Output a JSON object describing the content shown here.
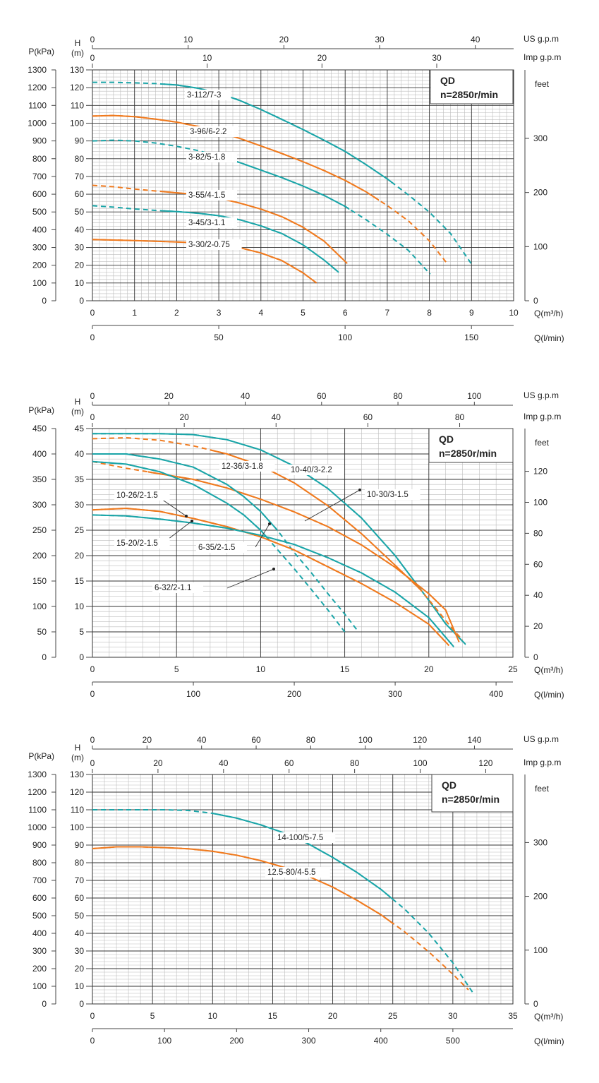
{
  "colors": {
    "teal": "#1aa5a8",
    "orange": "#f07a1e",
    "grid_major": "#333333",
    "grid_minor": "#bdbdbd",
    "axis": "#444444"
  },
  "chart_data": [
    {
      "type": "line",
      "title": "QD",
      "subtitle": "n=2850r/min",
      "ylabel_p": "P(kPa)",
      "ylabel_h": "H",
      "ylabel_h_unit": "(m)",
      "ylabel_feet": "feet",
      "xlabel_q": "Q(m³/h)",
      "xlabel_l": "Q(l/min)",
      "xlabel_us": "US g.p.m",
      "xlabel_imp": "Imp g.p.m",
      "xlim": [
        0,
        10
      ],
      "ylim": [
        0,
        130
      ],
      "x_ticks": [
        "0",
        "1",
        "2",
        "3",
        "4",
        "5",
        "6",
        "7",
        "8",
        "9",
        "10"
      ],
      "h_ticks": [
        "0",
        "10",
        "20",
        "30",
        "40",
        "50",
        "60",
        "70",
        "80",
        "90",
        "100",
        "110",
        "120",
        "130"
      ],
      "p_ticks": [
        "0",
        "100",
        "200",
        "300",
        "400",
        "500",
        "600",
        "700",
        "800",
        "900",
        "1000",
        "1100",
        "1200",
        "1300"
      ],
      "feet_ticks": [
        "0",
        "100",
        "200",
        "300"
      ],
      "l_ticks": [
        "0",
        "50",
        "100",
        "150"
      ],
      "us_ticks": [
        "0",
        "10",
        "20",
        "30",
        "40"
      ],
      "imp_ticks": [
        "0",
        "10",
        "20",
        "30"
      ],
      "series": [
        {
          "name": "3-112/7-3",
          "color": "teal",
          "x": [
            0,
            0.5,
            1,
            1.5,
            2,
            2.5,
            3,
            3.5,
            4,
            4.5,
            5,
            5.5,
            6,
            6.5,
            7,
            7.5,
            8,
            8.5,
            9.02
          ],
          "y": [
            123,
            123,
            122.7,
            122.3,
            121.5,
            119.7,
            116.9,
            112.8,
            107.7,
            102.1,
            96.4,
            90.4,
            84.1,
            76.6,
            68.6,
            59.6,
            49.9,
            37.9,
            20
          ],
          "solid_from": 1.7,
          "solid_to": 7.1
        },
        {
          "name": "3-96/6-2.2",
          "color": "orange",
          "x": [
            0,
            0.5,
            1,
            1.5,
            2,
            2.5,
            3,
            3.5,
            4,
            4.5,
            5,
            5.5,
            6,
            6.5,
            7,
            7.5,
            8,
            8.42
          ],
          "y": [
            104,
            104.3,
            103.7,
            102.3,
            100.6,
            98.2,
            95.1,
            91.4,
            87.2,
            82.9,
            78.3,
            73.3,
            67.8,
            61.3,
            53.6,
            45,
            33.7,
            21
          ],
          "solid_from": 0,
          "solid_to": 6.8
        },
        {
          "name": "3-82/5-1.8",
          "color": "teal",
          "x": [
            0,
            0.5,
            1,
            1.5,
            2,
            2.5,
            3,
            3.5,
            4,
            4.5,
            5,
            5.5,
            6,
            6.5,
            7,
            7.5,
            8.02
          ],
          "y": [
            90,
            90.4,
            90,
            88.8,
            87,
            84.6,
            81.4,
            77.8,
            73.6,
            69.3,
            64.6,
            59.3,
            53.1,
            45.6,
            37.4,
            28.4,
            15
          ],
          "solid_from": 3.4,
          "solid_to": 6.1
        },
        {
          "name": "3-55/4-1.5",
          "color": "orange",
          "x": [
            0,
            0.5,
            1,
            1.5,
            2,
            2.5,
            3,
            3.5,
            4,
            4.5,
            5,
            5.5,
            6.05
          ],
          "y": [
            65,
            64.2,
            62.9,
            61.8,
            60.8,
            59.8,
            57.8,
            55,
            51.6,
            47.3,
            41.4,
            33.6,
            21
          ],
          "solid_from": 1.7,
          "solid_to": 6.05
        },
        {
          "name": "3-45/3-1.1",
          "color": "teal",
          "x": [
            0,
            0.5,
            1,
            1.5,
            2,
            2.5,
            3,
            3.5,
            4,
            4.5,
            5,
            5.5,
            5.85
          ],
          "y": [
            53.5,
            52.7,
            51.7,
            50.9,
            50.2,
            49.3,
            47.9,
            45.6,
            42.2,
            37.8,
            31.5,
            22.9,
            16
          ],
          "solid_from": 1.7,
          "solid_to": 5.85
        },
        {
          "name": "3-30/2-0.75",
          "color": "orange",
          "x": [
            0,
            0.5,
            1,
            1.5,
            2,
            2.5,
            3,
            3.5,
            4,
            4.5,
            5,
            5.32
          ],
          "y": [
            34.5,
            34.2,
            33.9,
            33.5,
            33.1,
            32.6,
            31.6,
            29.9,
            26.9,
            22.6,
            15.7,
            10
          ],
          "solid_from": 0,
          "solid_to": 5.32
        }
      ]
    },
    {
      "type": "line",
      "title": "QD",
      "subtitle": "n=2850r/min",
      "ylabel_p": "P(kPa)",
      "ylabel_h": "H",
      "ylabel_h_unit": "(m)",
      "ylabel_feet": "feet",
      "xlabel_q": "Q(m³/h)",
      "xlabel_l": "Q(l/min)",
      "xlabel_us": "US g.p.m",
      "xlabel_imp": "Imp g.p.m",
      "xlim": [
        0,
        25
      ],
      "ylim": [
        0,
        45
      ],
      "x_ticks": [
        "0",
        "5",
        "10",
        "15",
        "20",
        "25"
      ],
      "h_ticks": [
        "0",
        "5",
        "10",
        "15",
        "20",
        "25",
        "30",
        "35",
        "40",
        "45"
      ],
      "p_ticks": [
        "0",
        "50",
        "100",
        "150",
        "200",
        "250",
        "300",
        "350",
        "400",
        "450"
      ],
      "feet_ticks": [
        "0",
        "20",
        "40",
        "60",
        "80",
        "100",
        "120"
      ],
      "l_ticks": [
        "0",
        "100",
        "200",
        "300",
        "400"
      ],
      "us_ticks": [
        "0",
        "20",
        "40",
        "60",
        "80",
        "100"
      ],
      "imp_ticks": [
        "0",
        "20",
        "40",
        "60",
        "80"
      ],
      "series": [
        {
          "name": "10-40/3-2.2",
          "color": "teal",
          "x": [
            0,
            2,
            4,
            6,
            8,
            10,
            12,
            14,
            16,
            18,
            20,
            21,
            22.2
          ],
          "y": [
            44,
            44,
            44,
            43.8,
            42.8,
            40.8,
            37.6,
            33.2,
            27.4,
            20,
            11.2,
            6.6,
            2.5
          ],
          "solid_from": 0,
          "solid_to": 22.2
        },
        {
          "name": "12-36/3-1.8",
          "color": "orange",
          "x": [
            0,
            2,
            4,
            6,
            8,
            10,
            12,
            14,
            16,
            18,
            19.5,
            20.5,
            21.3,
            22
          ],
          "y": [
            43,
            43.2,
            42.7,
            41.6,
            40,
            37.7,
            34.3,
            29.8,
            24.3,
            18.1,
            13.3,
            9.3,
            6,
            3.4
          ],
          "solid_from": 7,
          "solid_to": 19.5
        },
        {
          "name": "10-30/3-1.5",
          "color": "orange",
          "x": [
            0,
            2,
            4,
            6,
            8,
            10,
            12,
            14,
            16,
            18,
            20,
            21,
            21.8
          ],
          "y": [
            38.5,
            37.2,
            36.1,
            35,
            33.3,
            31.1,
            28.6,
            25.7,
            22.1,
            17.7,
            12.5,
            9.3,
            3
          ],
          "solid_from": 3.3,
          "solid_to": 21.8
        },
        {
          "name": "6-35/2-1.5",
          "color": "teal",
          "x": [
            0,
            2,
            4,
            6,
            8,
            9,
            10,
            11,
            12,
            13,
            14,
            15,
            15.7
          ],
          "y": [
            40,
            40,
            39,
            37.4,
            34,
            31.6,
            28.7,
            25,
            20.6,
            16.7,
            12.5,
            8.5,
            5.5
          ],
          "solid_from": 0,
          "solid_to": 11
        },
        {
          "name": "6-32/2-1.1",
          "color": "teal",
          "x": [
            0,
            2,
            4,
            6,
            8,
            9,
            10,
            11,
            12,
            13,
            14,
            15
          ],
          "y": [
            38.5,
            38,
            36.5,
            34,
            30.3,
            28,
            25,
            21.2,
            17.4,
            13.4,
            9.3,
            5
          ],
          "solid_from": 0,
          "solid_to": 10.5
        },
        {
          "name": "10-26/2-1.5",
          "color": "orange",
          "x": [
            0,
            2,
            4,
            6,
            8,
            10,
            12,
            14,
            16,
            18,
            20,
            21.2
          ],
          "y": [
            29,
            29.3,
            28.7,
            27.3,
            25.7,
            23.7,
            21.1,
            17.8,
            14.5,
            10.8,
            6.5,
            2.3
          ],
          "solid_from": 0,
          "solid_to": 21.2
        },
        {
          "name": "15-20/2-1.5",
          "color": "teal",
          "x": [
            0,
            2,
            4,
            6,
            8,
            10,
            12,
            14,
            16,
            18,
            20,
            21.5
          ],
          "y": [
            28,
            27.8,
            27.2,
            26.4,
            25.4,
            24,
            22.2,
            19.6,
            16.6,
            12.8,
            7.8,
            2
          ],
          "solid_from": 0,
          "solid_to": 21.5
        }
      ]
    },
    {
      "type": "line",
      "title": "QD",
      "subtitle": "n=2850r/min",
      "ylabel_p": "P(kPa)",
      "ylabel_h": "H",
      "ylabel_h_unit": "(m)",
      "ylabel_feet": "feet",
      "xlabel_q": "Q(m³/h)",
      "xlabel_l": "Q(l/min)",
      "xlabel_us": "US g.p.m",
      "xlabel_imp": "Imp g.p.m",
      "xlim": [
        0,
        35
      ],
      "ylim": [
        0,
        130
      ],
      "x_ticks": [
        "0",
        "5",
        "10",
        "15",
        "20",
        "25",
        "30",
        "35"
      ],
      "h_ticks": [
        "0",
        "10",
        "20",
        "30",
        "40",
        "50",
        "60",
        "70",
        "80",
        "90",
        "100",
        "110",
        "120",
        "130"
      ],
      "p_ticks": [
        "0",
        "100",
        "200",
        "300",
        "400",
        "500",
        "600",
        "700",
        "800",
        "900",
        "1000",
        "1100",
        "1200",
        "1300"
      ],
      "feet_ticks": [
        "0",
        "100",
        "200",
        "300"
      ],
      "l_ticks": [
        "0",
        "100",
        "200",
        "300",
        "400",
        "500"
      ],
      "us_ticks": [
        "0",
        "20",
        "40",
        "60",
        "80",
        "100",
        "120",
        "140"
      ],
      "imp_ticks": [
        "0",
        "20",
        "40",
        "60",
        "80",
        "100",
        "120"
      ],
      "series": [
        {
          "name": "14-100/5-7.5",
          "color": "teal",
          "x": [
            0,
            2,
            4,
            6,
            8,
            10,
            12,
            14,
            16,
            18,
            20,
            22,
            24,
            26,
            28,
            30,
            31.7
          ],
          "y": [
            110,
            110,
            110,
            110,
            109.6,
            108,
            105.3,
            101.5,
            96.8,
            90.6,
            83,
            74.6,
            65,
            53.7,
            40,
            23.3,
            6
          ],
          "solid_from": 10,
          "solid_to": 25
        },
        {
          "name": "12.5-80/4-5.5",
          "color": "orange",
          "x": [
            0,
            2,
            4,
            6,
            8,
            10,
            12,
            14,
            16,
            18,
            20,
            22,
            24,
            26,
            28,
            30,
            31.3
          ],
          "y": [
            88,
            89,
            89,
            88.6,
            87.9,
            86.5,
            84.3,
            81.2,
            77.3,
            72.3,
            66.2,
            58.8,
            50.6,
            40.8,
            29.5,
            16.8,
            8
          ],
          "solid_from": 0,
          "solid_to": 25
        }
      ]
    }
  ]
}
